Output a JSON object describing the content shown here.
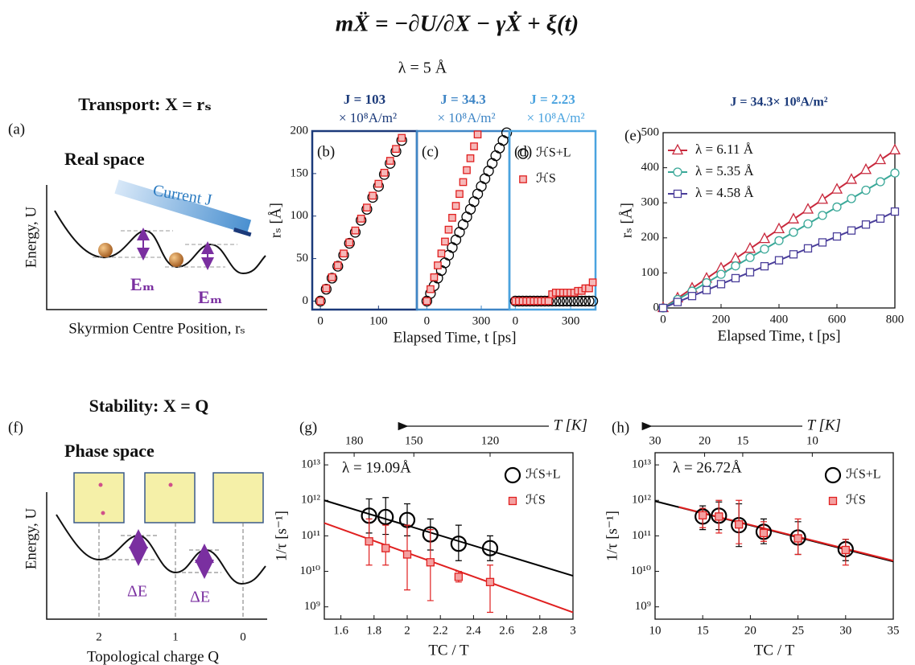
{
  "equation": "mẌ = −∂U/∂X − γẊ + ξ(t)",
  "lambda_label": "λ = 5 Å",
  "schematics": {
    "transport": {
      "title": "Transport: X = rₛ",
      "panel_label": "(a)",
      "space": "Real space",
      "current": "Current J",
      "ylabel": "Energy, U",
      "barrier_labels": [
        "Eₘ",
        "Eₘ"
      ],
      "xlabel": "Skyrmion Centre Position, rₛ"
    },
    "stability": {
      "title": "Stability: X = Q",
      "panel_label": "(f)",
      "space": "Phase space",
      "ylabel": "Energy, U",
      "barrier_labels": [
        "ΔE",
        "ΔE"
      ],
      "xticks": [
        "2",
        "1",
        "0"
      ],
      "xlabel": "Topological charge Q"
    }
  },
  "chart_data": [
    {
      "type": "scatter",
      "panel_label": "(b)",
      "current": "J = 103",
      "current_unit": "× 10⁸A/m²",
      "frame_color": "#1b3a7a",
      "ylabel": "rₛ [Å]",
      "xlim": [
        -14,
        166
      ],
      "xticks": [
        0,
        100
      ],
      "ylim": [
        -10,
        200
      ],
      "yticks": [
        0,
        50,
        100,
        150,
        200
      ],
      "series": [
        {
          "marker": "circle",
          "color": "#000000",
          "marker_fill": "none",
          "x": [
            0,
            10,
            20,
            30,
            40,
            50,
            60,
            70,
            80,
            90,
            100,
            110,
            120,
            130,
            140
          ],
          "values": [
            0,
            14,
            27,
            41,
            54,
            68,
            81,
            95,
            108,
            122,
            135,
            149,
            162,
            176,
            189
          ]
        },
        {
          "marker": "square",
          "color": "#e02020",
          "marker_fill": "#f6b8b8",
          "x": [
            0,
            10,
            20,
            30,
            40,
            50,
            60,
            70,
            80,
            90,
            100,
            110,
            120,
            130,
            140
          ],
          "values": [
            0,
            15,
            28,
            42,
            56,
            69,
            83,
            97,
            110,
            124,
            138,
            151,
            165,
            179,
            192
          ]
        }
      ]
    },
    {
      "type": "scatter",
      "panel_label": "(c)",
      "current": "J = 34.3",
      "current_unit": "× 10⁸A/m²",
      "frame_color": "#3f86c6",
      "xlabel": "Elapsed Time, t [ps]",
      "xlim": [
        -55,
        455
      ],
      "xticks": [
        0,
        300
      ],
      "ylim": [
        -10,
        200
      ],
      "series": [
        {
          "marker": "circle",
          "color": "#000000",
          "marker_fill": "none",
          "x": [
            0,
            20,
            40,
            60,
            80,
            100,
            120,
            140,
            160,
            180,
            200,
            220,
            240,
            260,
            280,
            300,
            320,
            340,
            360,
            380,
            400,
            420,
            440
          ],
          "values": [
            0,
            9,
            18,
            27,
            36,
            45,
            54,
            63,
            72,
            81,
            90,
            99,
            108,
            117,
            126,
            135,
            144,
            153,
            162,
            171,
            180,
            189,
            198
          ]
        },
        {
          "marker": "square",
          "color": "#e02020",
          "marker_fill": "#f6b8b8",
          "x": [
            0,
            20,
            40,
            60,
            80,
            100,
            120,
            140,
            160,
            180,
            200,
            220,
            240,
            260,
            280
          ],
          "values": [
            0,
            14,
            28,
            42,
            56,
            70,
            84,
            98,
            112,
            126,
            140,
            154,
            168,
            182,
            196
          ]
        }
      ]
    },
    {
      "type": "scatter",
      "panel_label": "(d)",
      "current": "J = 2.23",
      "current_unit": "× 10⁸A/m²",
      "frame_color": "#4aa3df",
      "xlim": [
        -32,
        435
      ],
      "xticks": [
        0,
        300
      ],
      "ylim": [
        -10,
        200
      ],
      "legend": "upper right",
      "series": [
        {
          "name": "ℋS+L",
          "marker": "circle",
          "color": "#000000",
          "marker_fill": "none",
          "x": [
            0,
            20,
            40,
            60,
            80,
            100,
            120,
            140,
            160,
            180,
            200,
            220,
            240,
            260,
            280,
            300,
            320,
            340,
            360,
            380,
            400,
            420
          ],
          "values": [
            0,
            0,
            0,
            0,
            0,
            0,
            0,
            0,
            0,
            0,
            0,
            0,
            0,
            0,
            0,
            0,
            0,
            0,
            0,
            0,
            0,
            0
          ]
        },
        {
          "name": "ℋS",
          "marker": "square",
          "color": "#e02020",
          "marker_fill": "#f6b8b8",
          "x": [
            0,
            20,
            40,
            60,
            80,
            100,
            120,
            140,
            160,
            180,
            200,
            220,
            240,
            260,
            280,
            300,
            320,
            340,
            360,
            380,
            400,
            420
          ],
          "values": [
            0,
            0,
            0,
            0,
            0,
            0,
            0,
            0,
            0,
            0,
            8,
            10,
            10,
            10,
            10,
            10,
            10,
            12,
            12,
            15,
            15,
            22
          ]
        }
      ]
    },
    {
      "type": "line",
      "panel_label": "(e)",
      "title": "J = 34.3× 10⁸A/m²",
      "xlabel": "Elapsed Time, t [ps]",
      "ylabel": "rₛ [Å]",
      "xlim": [
        0,
        800
      ],
      "xticks": [
        0,
        200,
        400,
        600,
        800
      ],
      "ylim": [
        0,
        500
      ],
      "yticks": [
        0,
        100,
        200,
        300,
        400,
        500
      ],
      "legend": "upper left",
      "series": [
        {
          "name": "λ = 6.11 Å",
          "marker": "triangle",
          "color": "#c8283c",
          "marker_fill": "#ffffff",
          "x": [
            0,
            50,
            100,
            150,
            200,
            250,
            300,
            350,
            400,
            450,
            500,
            550,
            600,
            650,
            700,
            750,
            800
          ],
          "values": [
            0,
            28,
            56,
            84,
            113,
            141,
            169,
            197,
            225,
            253,
            281,
            309,
            338,
            366,
            394,
            422,
            450
          ]
        },
        {
          "name": "λ = 5.35 Å",
          "marker": "circle",
          "color": "#3aa898",
          "marker_fill": "#ffffff",
          "x": [
            0,
            50,
            100,
            150,
            200,
            250,
            300,
            350,
            400,
            450,
            500,
            550,
            600,
            650,
            700,
            750,
            800
          ],
          "values": [
            0,
            24,
            48,
            72,
            96,
            120,
            144,
            168,
            192,
            216,
            240,
            264,
            288,
            312,
            336,
            360,
            385
          ]
        },
        {
          "name": "λ = 4.58 Å",
          "marker": "square",
          "color": "#4a3e9a",
          "marker_fill": "#ffffff",
          "x": [
            0,
            50,
            100,
            150,
            200,
            250,
            300,
            350,
            400,
            450,
            500,
            550,
            600,
            650,
            700,
            750,
            800
          ],
          "values": [
            0,
            17,
            34,
            51,
            68,
            85,
            102,
            119,
            136,
            153,
            170,
            187,
            204,
            221,
            238,
            255,
            275
          ]
        }
      ]
    },
    {
      "type": "scatter",
      "panel_label": "(g)",
      "annotation": "λ = 19.09Å",
      "xlabel": "TC / T",
      "ylabel": "1/τ [s⁻¹]",
      "yscale": "log",
      "legend": "upper right",
      "xlim": [
        1.5,
        3.0
      ],
      "xticks": [
        1.6,
        1.8,
        2.0,
        2.2,
        2.4,
        2.6,
        2.8,
        3.0
      ],
      "ylim": [
        450000000.0,
        22000000000000.0
      ],
      "yticks": [
        {
          "value": 1000000000.0,
          "label": "10⁹"
        },
        {
          "value": 10000000000.0,
          "label": "10¹⁰"
        },
        {
          "value": 100000000000.0,
          "label": "10¹¹"
        },
        {
          "value": 1000000000000.0,
          "label": "10¹²"
        },
        {
          "value": 10000000000000.0,
          "label": "10¹³"
        }
      ],
      "top_axis": {
        "label": "T [K]",
        "ticks": [
          {
            "value": 1.68,
            "label": "180"
          },
          {
            "value": 2.04,
            "label": "150"
          },
          {
            "value": 2.5,
            "label": "120"
          }
        ]
      },
      "fits": [
        {
          "color": "#000000",
          "x": [
            1.5,
            3.0
          ],
          "values": [
            1000000000000.0,
            7500000000.0
          ]
        },
        {
          "color": "#e02020",
          "x": [
            1.5,
            3.0
          ],
          "values": [
            230000000000.0,
            700000000.0
          ]
        }
      ],
      "series": [
        {
          "name": "ℋS+L",
          "marker": "circle",
          "color": "#000000",
          "marker_fill": "none",
          "x": [
            1.77,
            1.87,
            2.0,
            2.14,
            2.31,
            2.5
          ],
          "values": [
            370000000000.0,
            340000000000.0,
            280000000000.0,
            110000000000.0,
            60000000000.0,
            45000000000.0
          ],
          "err_low": [
            120000000000.0,
            110000000000.0,
            100000000000.0,
            40000000000.0,
            20000000000.0,
            20000000000.0
          ],
          "err_high": [
            1100000000000.0,
            1200000000000.0,
            800000000000.0,
            300000000000.0,
            200000000000.0,
            100000000000.0
          ]
        },
        {
          "name": "ℋS",
          "marker": "square",
          "color": "#e02020",
          "marker_fill": "#f4a0a0",
          "x": [
            1.77,
            1.87,
            2.0,
            2.14,
            2.31,
            2.5
          ],
          "values": [
            70000000000.0,
            45000000000.0,
            30000000000.0,
            18000000000.0,
            7000000000.0,
            5000000000.0
          ],
          "err_low": [
            15000000000.0,
            15000000000.0,
            3000000000.0,
            1500000000.0,
            5000000000.0,
            700000000.0
          ],
          "err_high": [
            300000000000.0,
            200000000000.0,
            200000000000.0,
            150000000000.0,
            10000000000.0,
            15000000000.0
          ]
        }
      ]
    },
    {
      "type": "scatter",
      "panel_label": "(h)",
      "annotation": "λ = 26.72Å",
      "xlabel": "TC / T",
      "ylabel": "1/τ [s⁻¹]",
      "yscale": "log",
      "legend": "upper right",
      "xlim": [
        10,
        35
      ],
      "xticks": [
        10,
        15,
        20,
        25,
        30,
        35
      ],
      "ylim": [
        450000000.0,
        22000000000000.0
      ],
      "yticks": [
        {
          "value": 1000000000.0,
          "label": "10⁹"
        },
        {
          "value": 10000000000.0,
          "label": "10¹⁰"
        },
        {
          "value": 100000000000.0,
          "label": "10¹¹"
        },
        {
          "value": 1000000000000.0,
          "label": "10¹²"
        },
        {
          "value": 10000000000000.0,
          "label": "10¹³"
        }
      ],
      "top_axis": {
        "label": "T [K]",
        "ticks": [
          {
            "value": 10,
            "label": "30"
          },
          {
            "value": 15.2,
            "label": "20"
          },
          {
            "value": 19.2,
            "label": "15"
          },
          {
            "value": 26.5,
            "label": "10"
          }
        ]
      },
      "fits": [
        {
          "color": "#000000",
          "x": [
            10,
            35
          ],
          "values": [
            950000000000.0,
            19000000000.0
          ]
        },
        {
          "color": "#e02020",
          "x": [
            12.5,
            35
          ],
          "values": [
            650000000000.0,
            20000000000.0
          ]
        }
      ],
      "series": [
        {
          "name": "ℋS+L",
          "marker": "circle",
          "color": "#000000",
          "marker_fill": "none",
          "x": [
            15,
            16.7,
            18.8,
            21.4,
            25,
            30
          ],
          "values": [
            350000000000.0,
            370000000000.0,
            200000000000.0,
            130000000000.0,
            90000000000.0,
            42000000000.0
          ],
          "err_low": [
            150000000000.0,
            150000000000.0,
            50000000000.0,
            60000000000.0,
            30000000000.0,
            20000000000.0
          ],
          "err_high": [
            700000000000.0,
            900000000000.0,
            800000000000.0,
            300000000000.0,
            250000000000.0,
            80000000000.0
          ]
        },
        {
          "name": "ℋS",
          "marker": "square",
          "color": "#e02020",
          "marker_fill": "#f4a0a0",
          "x": [
            15,
            16.7,
            18.8,
            21.4,
            25,
            30
          ],
          "values": [
            380000000000.0,
            350000000000.0,
            210000000000.0,
            120000000000.0,
            85000000000.0,
            40000000000.0
          ],
          "err_low": [
            170000000000.0,
            120000000000.0,
            60000000000.0,
            70000000000.0,
            30000000000.0,
            15000000000.0
          ],
          "err_high": [
            600000000000.0,
            1000000000000.0,
            1000000000000.0,
            250000000000.0,
            300000000000.0,
            80000000000.0
          ]
        }
      ]
    }
  ]
}
